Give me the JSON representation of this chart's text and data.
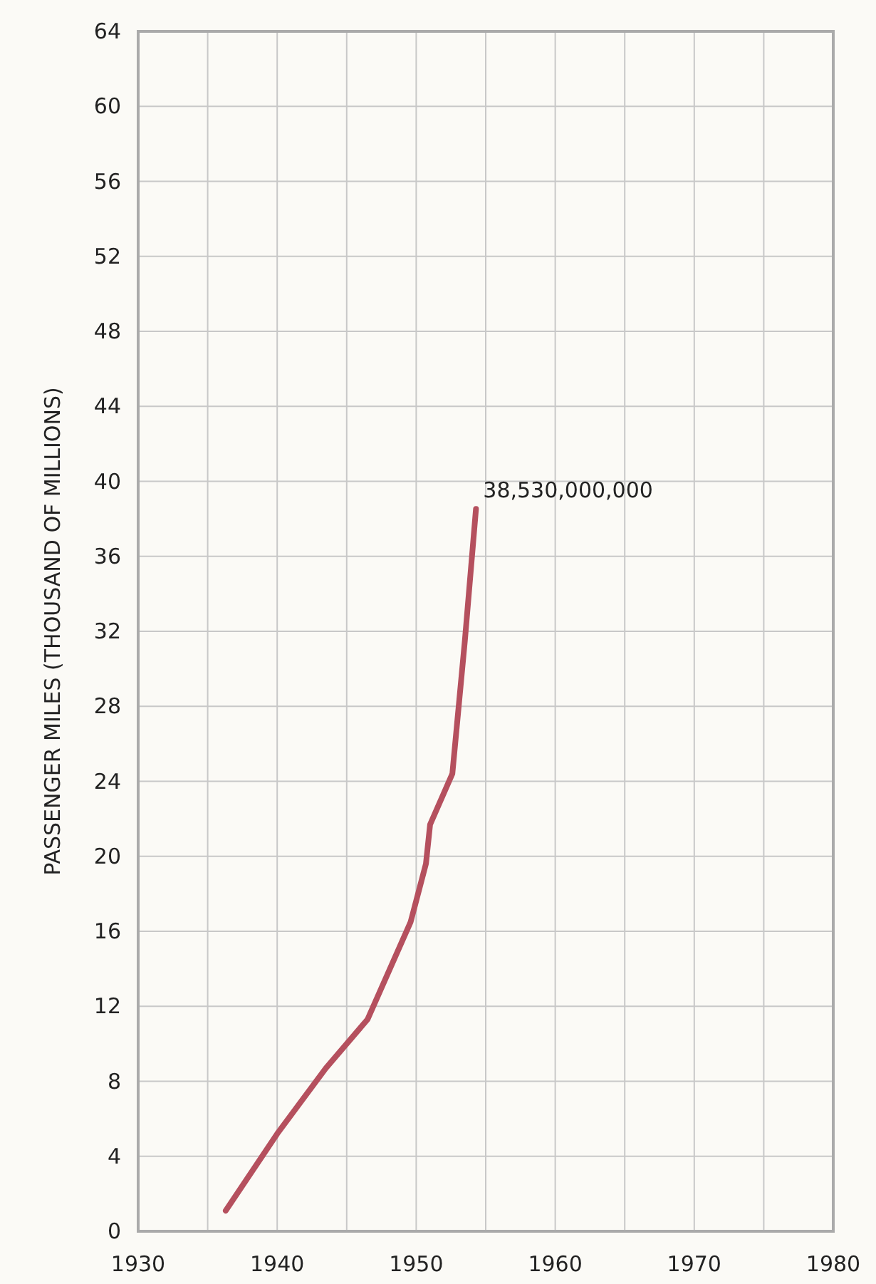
{
  "chart_data": {
    "type": "line",
    "ylabel": "PASSENGER MILES (THOUSAND OF MILLIONS)",
    "x": [
      1936.3,
      1940,
      1943.5,
      1946.5,
      1949.6,
      1950.7,
      1951.0,
      1952.6,
      1953.5,
      1954.3
    ],
    "series": [
      {
        "color": "#b5505e",
        "values": [
          1.1,
          5.2,
          8.7,
          11.3,
          16.5,
          19.6,
          21.7,
          24.4,
          31.5,
          38.53
        ]
      }
    ],
    "annotations": [
      {
        "text": "38,530,000,000",
        "x": 1954.3,
        "y": 38.53
      }
    ],
    "xlim": [
      1930,
      1980
    ],
    "xticks": [
      1930,
      {
        "value": 1935,
        "label": null
      },
      1940,
      {
        "value": 1945,
        "label": null
      },
      1950,
      {
        "value": 1955,
        "label": null
      },
      1960,
      {
        "value": 1965,
        "label": null
      },
      1970,
      {
        "value": 1975,
        "label": null
      },
      1980
    ],
    "ylim": [
      0,
      64
    ],
    "yticks": [
      0,
      4,
      8,
      12,
      16,
      20,
      24,
      28,
      32,
      36,
      40,
      44,
      48,
      52,
      56,
      60,
      64
    ],
    "grid": true,
    "marker": "none",
    "line_style": "solid"
  }
}
